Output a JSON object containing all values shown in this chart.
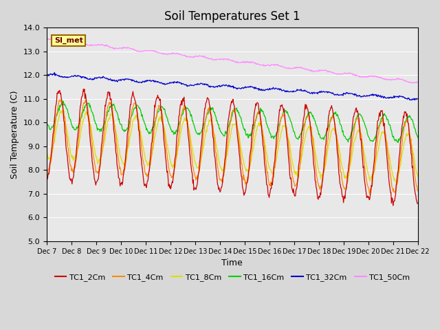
{
  "title": "Soil Temperatures Set 1",
  "xlabel": "Time",
  "ylabel": "Soil Temperature (C)",
  "ylim": [
    5.0,
    14.0
  ],
  "yticks": [
    5.0,
    6.0,
    7.0,
    8.0,
    9.0,
    10.0,
    11.0,
    12.0,
    13.0,
    14.0
  ],
  "xlabels": [
    "Dec 7",
    "Dec 8",
    "Dec 9",
    "Dec 10",
    "Dec 11",
    "Dec 12",
    "Dec 13",
    "Dec 14",
    "Dec 15",
    "Dec 16",
    "Dec 17",
    "Dec 18",
    "Dec 19",
    "Dec 20",
    "Dec 21",
    "Dec 22"
  ],
  "legend_label": "SI_met",
  "series_colors": [
    "#cc0000",
    "#ff8800",
    "#dddd00",
    "#00cc00",
    "#0000cc",
    "#ff88ff"
  ],
  "series_names": [
    "TC1_2Cm",
    "TC1_4Cm",
    "TC1_8Cm",
    "TC1_16Cm",
    "TC1_32Cm",
    "TC1_50Cm"
  ],
  "n_days": 15,
  "points_per_day": 48
}
